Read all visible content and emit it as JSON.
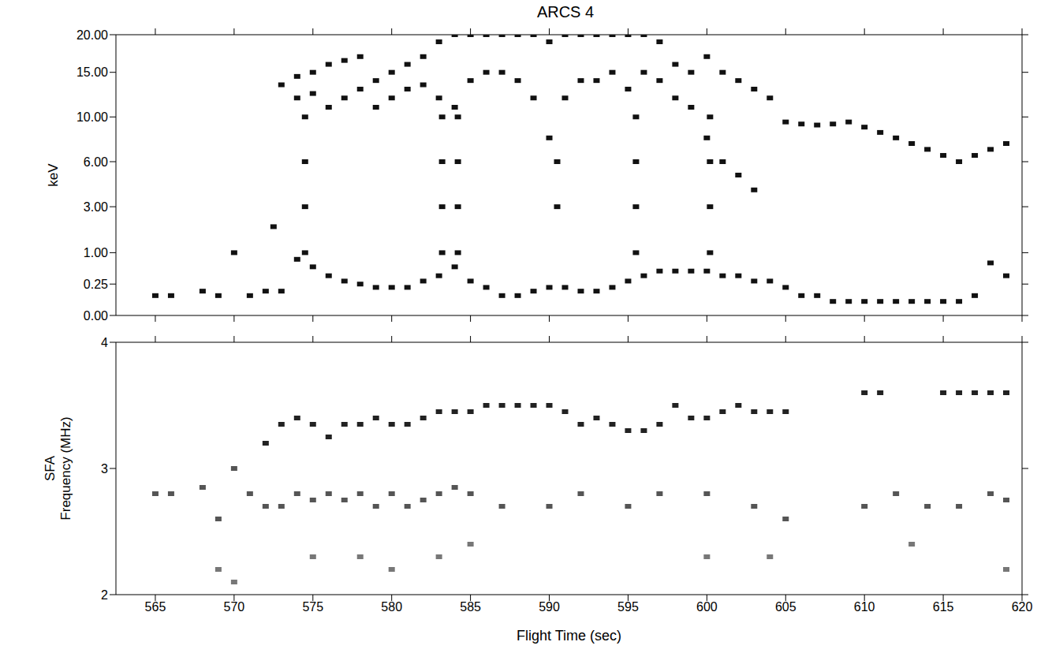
{
  "chart_data": [
    {
      "type": "scatter",
      "title": "ARCS 4",
      "ylabel": "keV",
      "tick_labels": "y",
      "xlim": [
        562.5,
        620
      ],
      "xticks": [
        565,
        570,
        575,
        580,
        585,
        590,
        595,
        600,
        605,
        610,
        615,
        620
      ],
      "ylim": [
        0,
        20
      ],
      "yticks": [
        {
          "value": 0,
          "label": "0.00"
        },
        {
          "value": 0.25,
          "label": "0.25"
        },
        {
          "value": 1,
          "label": "1.00"
        },
        {
          "value": 3,
          "label": "3.00"
        },
        {
          "value": 6,
          "label": "6.00"
        },
        {
          "value": 10,
          "label": "10.00"
        },
        {
          "value": 15,
          "label": "15.00"
        },
        {
          "value": 20,
          "label": "20.00"
        }
      ],
      "series": [
        {
          "color": "#111111",
          "x": [
            573,
            574,
            575,
            576,
            577,
            578,
            579,
            580,
            581,
            582,
            583,
            584,
            585,
            586,
            587,
            588,
            589,
            590,
            591,
            592,
            593,
            594,
            595,
            596,
            597,
            598,
            599,
            600,
            601,
            602,
            603,
            604,
            605,
            606,
            607,
            608,
            609,
            610,
            611,
            612,
            613,
            614,
            615,
            616,
            617,
            618,
            619
          ],
          "values": [
            13.5,
            14.5,
            15,
            16,
            16.5,
            17,
            14,
            15,
            16,
            17,
            19,
            20,
            20,
            20,
            20,
            20,
            20,
            19,
            20,
            20,
            20,
            20,
            20,
            20,
            19,
            16,
            15,
            17,
            15,
            14,
            13,
            12,
            9.5,
            9.3,
            9.2,
            9.3,
            9.5,
            9,
            8.5,
            8,
            7.5,
            7,
            6.5,
            6,
            6.5,
            7,
            7.5
          ]
        },
        {
          "color": "#111111",
          "x": [
            574,
            575,
            576,
            577,
            578,
            579,
            580,
            581,
            582,
            583,
            584,
            585,
            586,
            587,
            588,
            589,
            590,
            591,
            592,
            593,
            594,
            595,
            596,
            597,
            598,
            599,
            600,
            601,
            602,
            603
          ],
          "values": [
            12,
            12.5,
            11,
            12,
            13,
            11,
            12,
            13,
            13.5,
            12,
            11,
            14,
            15,
            15,
            14,
            12,
            8,
            12,
            14,
            14,
            15,
            13,
            15,
            14,
            12,
            11,
            8,
            6,
            5,
            4
          ]
        },
        {
          "color": "#111111",
          "x": [
            574.5,
            574.5,
            574.5,
            574.5,
            583.2,
            583.2,
            583.2,
            583.2,
            584.2,
            584.2,
            584.2,
            584.2,
            590.5,
            590.5,
            595.5,
            595.5,
            595.5,
            595.5,
            600.2,
            600.2,
            600.2,
            600.2
          ],
          "values": [
            1,
            3,
            6,
            10,
            1,
            3,
            6,
            10,
            1,
            3,
            6,
            10,
            3,
            6,
            1,
            3,
            6,
            10,
            1,
            3,
            6,
            10
          ]
        },
        {
          "color": "#111111",
          "x": [
            565,
            566,
            568,
            569,
            570,
            571,
            572,
            572.5,
            573,
            574,
            575,
            576,
            577,
            578,
            579,
            580,
            581,
            582,
            583,
            584,
            585,
            586,
            587,
            588,
            589,
            590,
            591,
            592,
            593,
            594,
            595,
            596,
            597,
            598,
            599,
            600,
            601,
            602,
            603,
            604,
            605,
            606,
            607,
            608,
            609,
            610,
            611,
            612,
            613,
            614,
            615,
            616,
            617,
            618,
            619
          ],
          "values": [
            0.1,
            0.1,
            0.15,
            0.1,
            1,
            0.1,
            0.15,
            2,
            0.15,
            0.8,
            0.6,
            0.4,
            0.3,
            0.25,
            0.2,
            0.2,
            0.2,
            0.3,
            0.4,
            0.6,
            0.3,
            0.2,
            0.1,
            0.1,
            0.15,
            0.2,
            0.2,
            0.15,
            0.15,
            0.2,
            0.3,
            0.4,
            0.5,
            0.5,
            0.5,
            0.5,
            0.4,
            0.4,
            0.3,
            0.3,
            0.2,
            0.1,
            0.1,
            0.05,
            0.05,
            0.05,
            0.05,
            0.05,
            0.05,
            0.05,
            0.05,
            0.05,
            0.1,
            0.7,
            0.4
          ]
        }
      ]
    },
    {
      "type": "scatter",
      "ylabel": "SFA Frequency (MHz)",
      "xlabel": "Flight Time (sec)",
      "xlim": [
        562.5,
        620
      ],
      "xticks": [
        565,
        570,
        575,
        580,
        585,
        590,
        595,
        600,
        605,
        610,
        615,
        620
      ],
      "ylim": [
        2,
        4
      ],
      "yticks": [
        2,
        3,
        4
      ],
      "series": [
        {
          "color": "#222222",
          "x": [
            572,
            573,
            574,
            575,
            576,
            577,
            578,
            579,
            580,
            581,
            582,
            583,
            584,
            585,
            586,
            587,
            588,
            589,
            590,
            591,
            592,
            593,
            594,
            595,
            596,
            597,
            598,
            599,
            600,
            601,
            602,
            603,
            604,
            605,
            610,
            611,
            615,
            616,
            617,
            618,
            619
          ],
          "values": [
            3.2,
            3.35,
            3.4,
            3.35,
            3.25,
            3.35,
            3.35,
            3.4,
            3.35,
            3.35,
            3.4,
            3.45,
            3.45,
            3.45,
            3.5,
            3.5,
            3.5,
            3.5,
            3.5,
            3.45,
            3.35,
            3.4,
            3.35,
            3.3,
            3.3,
            3.35,
            3.5,
            3.4,
            3.4,
            3.45,
            3.5,
            3.45,
            3.45,
            3.45,
            3.6,
            3.6,
            3.6,
            3.6,
            3.6,
            3.6,
            3.6
          ]
        },
        {
          "color": "#555555",
          "x": [
            565,
            566,
            568,
            569,
            570,
            571,
            572,
            573,
            574,
            575,
            576,
            577,
            578,
            579,
            580,
            581,
            582,
            583,
            584,
            585,
            587,
            590,
            592,
            595,
            597,
            600,
            603,
            605,
            610,
            612,
            614,
            616,
            618,
            619
          ],
          "values": [
            2.8,
            2.8,
            2.85,
            2.6,
            3,
            2.8,
            2.7,
            2.7,
            2.8,
            2.75,
            2.8,
            2.75,
            2.8,
            2.7,
            2.8,
            2.7,
            2.75,
            2.8,
            2.85,
            2.8,
            2.7,
            2.7,
            2.8,
            2.7,
            2.8,
            2.8,
            2.7,
            2.6,
            2.7,
            2.8,
            2.7,
            2.7,
            2.8,
            2.75
          ]
        },
        {
          "color": "#777777",
          "x": [
            569,
            570,
            575,
            578,
            580,
            583,
            585,
            600,
            604,
            613,
            619
          ],
          "values": [
            2.2,
            2.1,
            2.3,
            2.3,
            2.2,
            2.3,
            2.4,
            2.3,
            2.3,
            2.4,
            2.2
          ]
        }
      ]
    }
  ]
}
